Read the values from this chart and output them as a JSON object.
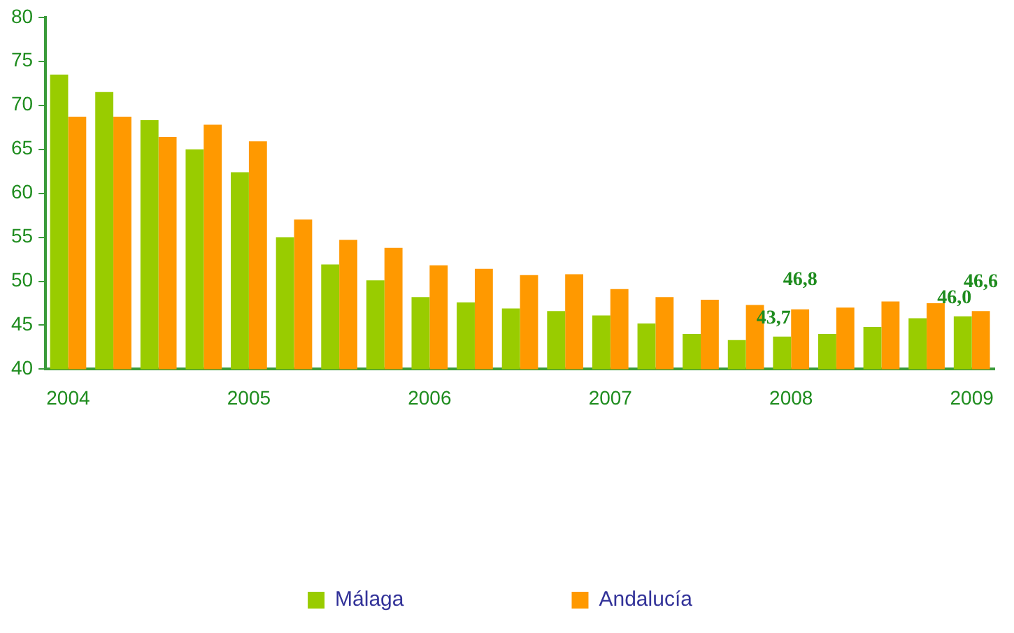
{
  "chart_data": {
    "type": "bar",
    "categories": [
      "2004",
      null,
      null,
      null,
      "2005",
      null,
      null,
      null,
      "2006",
      null,
      null,
      null,
      "2007",
      null,
      null,
      null,
      "2008",
      null,
      null,
      null,
      "2009"
    ],
    "series": [
      {
        "name": "Málaga",
        "color": "#99cc00",
        "values": [
          73.5,
          71.5,
          68.3,
          65.0,
          62.4,
          55.0,
          51.9,
          50.1,
          48.2,
          47.6,
          46.9,
          46.6,
          46.1,
          45.2,
          44.0,
          43.3,
          43.7,
          44.0,
          44.8,
          45.8,
          46.0
        ],
        "value_labels": [
          null,
          null,
          null,
          null,
          null,
          null,
          null,
          null,
          null,
          null,
          null,
          null,
          null,
          null,
          null,
          null,
          "43,7",
          null,
          null,
          null,
          "46,0"
        ]
      },
      {
        "name": "Andalucía",
        "color": "#ff9900",
        "values": [
          68.7,
          68.7,
          66.4,
          67.8,
          65.9,
          57.0,
          54.7,
          53.8,
          51.8,
          51.4,
          50.7,
          50.8,
          49.1,
          48.2,
          47.9,
          47.3,
          46.8,
          47.0,
          47.7,
          47.5,
          46.6
        ],
        "value_labels": [
          null,
          null,
          null,
          null,
          null,
          null,
          null,
          null,
          null,
          null,
          null,
          null,
          null,
          null,
          null,
          null,
          "46,8",
          null,
          null,
          null,
          "46,6"
        ]
      }
    ],
    "ylim": [
      40,
      80
    ],
    "yticks": [
      40,
      45,
      50,
      55,
      60,
      65,
      70,
      75,
      80
    ],
    "grid": false,
    "legend": "bottom"
  }
}
